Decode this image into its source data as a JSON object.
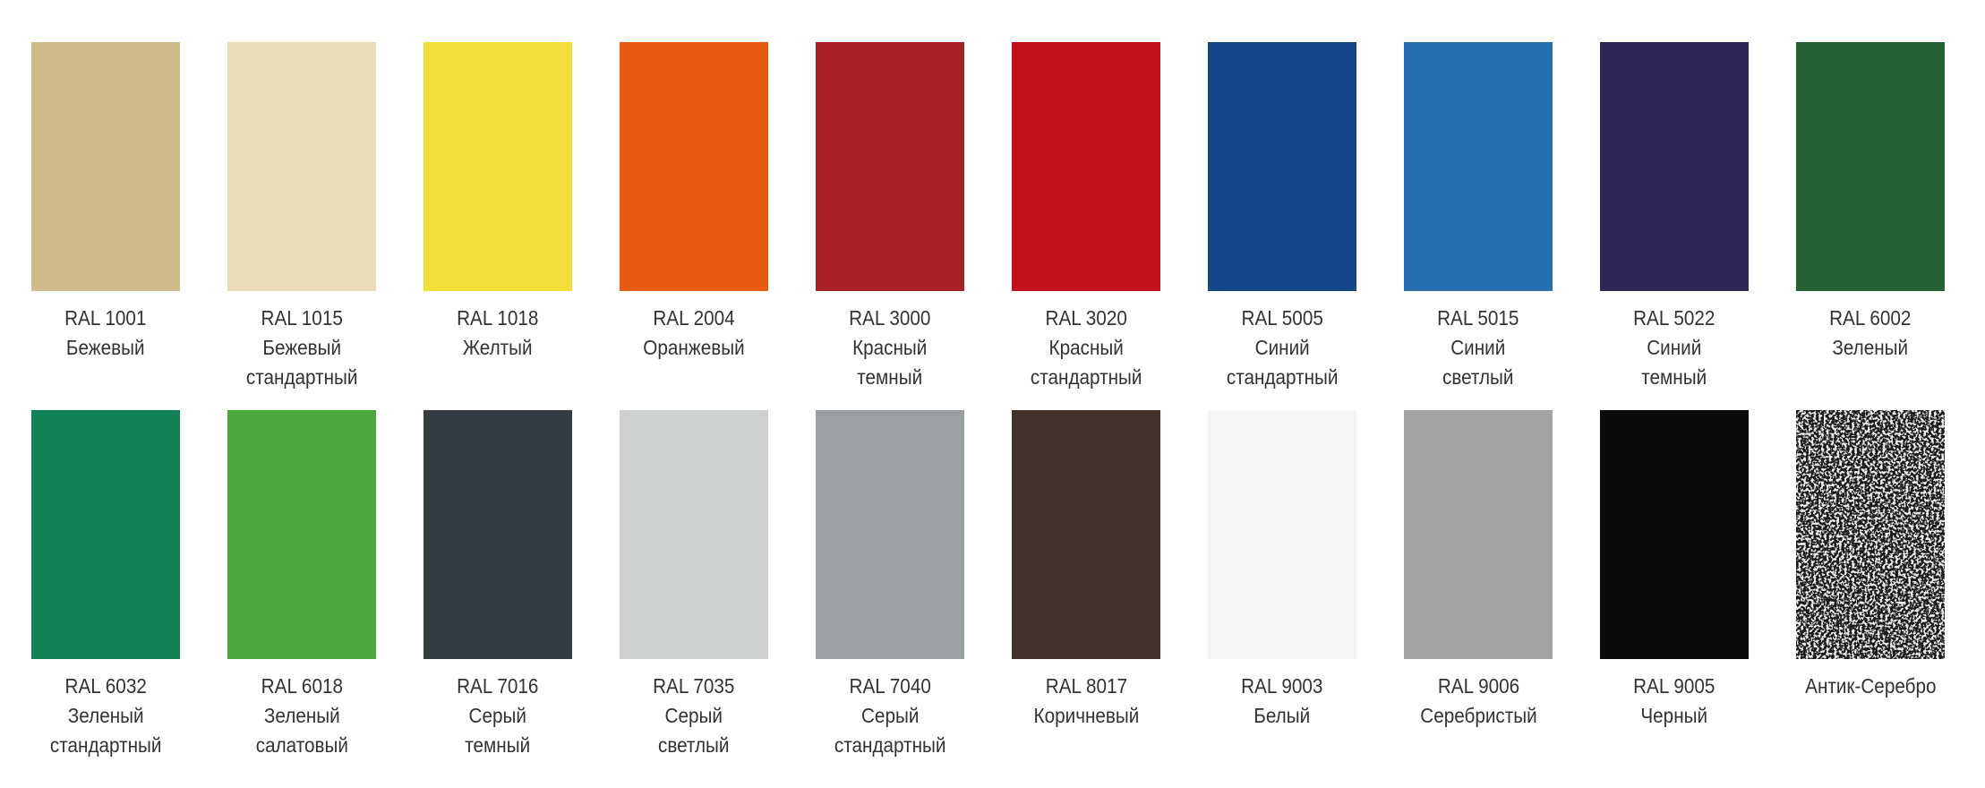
{
  "swatches": [
    {
      "code": "RAL 1001",
      "name": [
        "Бежевый"
      ],
      "color": "#d1bb8a"
    },
    {
      "code": "RAL 1015",
      "name": [
        "Бежевый",
        "стандартный"
      ],
      "color": "#e9dcb9"
    },
    {
      "code": "RAL 1018",
      "name": [
        "Желтый"
      ],
      "color": "#f2df3a"
    },
    {
      "code": "RAL 2004",
      "name": [
        "Оранжевый"
      ],
      "color": "#e85b15"
    },
    {
      "code": "RAL 3000",
      "name": [
        "Красный",
        "темный"
      ],
      "color": "#a82228"
    },
    {
      "code": "RAL 3020",
      "name": [
        "Красный",
        "стандартный"
      ],
      "color": "#c1121c"
    },
    {
      "code": "RAL 5005",
      "name": [
        "Синий",
        "стандартный"
      ],
      "color": "#15468a"
    },
    {
      "code": "RAL 5015",
      "name": [
        "Синий",
        "светлый"
      ],
      "color": "#2670b1"
    },
    {
      "code": "RAL 5022",
      "name": [
        "Синий",
        "темный"
      ],
      "color": "#2e2858"
    },
    {
      "code": "RAL 6002",
      "name": [
        "Зеленый"
      ],
      "color": "#256234"
    },
    {
      "code": "RAL 6032",
      "name": [
        "Зеленый",
        "стандартный"
      ],
      "color": "#108255"
    },
    {
      "code": "RAL 6018",
      "name": [
        "Зеленый",
        "салатовый"
      ],
      "color": "#4aa83c"
    },
    {
      "code": "RAL 7016",
      "name": [
        "Серый",
        "темный"
      ],
      "color": "#363d42"
    },
    {
      "code": "RAL 7035",
      "name": [
        "Серый",
        "светлый"
      ],
      "color": "#cdd1ce"
    },
    {
      "code": "RAL 7040",
      "name": [
        "Серый",
        "стандартный"
      ],
      "color": "#9aa0a4"
    },
    {
      "code": "RAL 8017",
      "name": [
        "Коричневый"
      ],
      "color": "#45322b"
    },
    {
      "code": "RAL 9003",
      "name": [
        "Белый"
      ],
      "color": "#f3f6f3"
    },
    {
      "code": "RAL 9006",
      "name": [
        "Серебристый"
      ],
      "color": "#a3a4a4"
    },
    {
      "code": "RAL 9005",
      "name": [
        "Черный"
      ],
      "color": "#0b0b0d"
    },
    {
      "code": "",
      "name": [
        "Антик-Серебро"
      ],
      "color": "#1a1a1a",
      "texture": "speckled-silver"
    }
  ]
}
